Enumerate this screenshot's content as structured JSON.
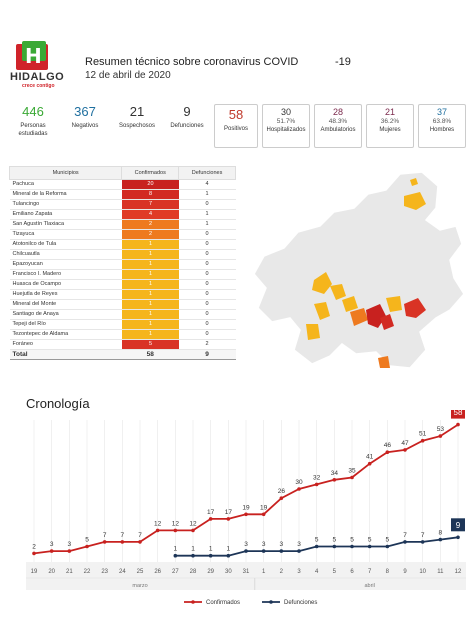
{
  "header": {
    "logo_text": "HIDALGO",
    "logo_sub": "crece contigo",
    "title": "Resumen técnico sobre coronavirus COVID",
    "title_suffix": "-19",
    "date": "12 de abril de 2020"
  },
  "stats": [
    {
      "value": "446",
      "label": "Personas estudiadas",
      "color": "#3aa935"
    },
    {
      "value": "367",
      "label": "Negativos",
      "color": "#1f6f9f"
    },
    {
      "value": "21",
      "label": "Sospechosos",
      "color": "#333333"
    },
    {
      "value": "9",
      "label": "Defunciones",
      "color": "#333333"
    },
    {
      "value": "58",
      "label": "Positivos",
      "color": "#c0392b"
    }
  ],
  "boxed_stats": [
    {
      "value": "30",
      "pct": "51.7%",
      "label": "Hospitalizados",
      "color": "#333333"
    },
    {
      "value": "28",
      "pct": "48.3%",
      "label": "Ambulatorios",
      "color": "#7b2a4d"
    },
    {
      "value": "21",
      "pct": "36.2%",
      "label": "Mujeres",
      "color": "#7b2a4d"
    },
    {
      "value": "37",
      "pct": "63.8%",
      "label": "Hombres",
      "color": "#1f6f9f"
    }
  ],
  "table": {
    "headers": [
      "Municipios",
      "Confirmados",
      "Defunciones"
    ],
    "rows": [
      {
        "name": "Pachuca",
        "confirmed": "20",
        "deaths": "4",
        "color": "#c8211f"
      },
      {
        "name": "Mineral de la Reforma",
        "confirmed": "8",
        "deaths": "1",
        "color": "#d22a22"
      },
      {
        "name": "Tulancingo",
        "confirmed": "7",
        "deaths": "0",
        "color": "#d93325"
      },
      {
        "name": "Emiliano Zapata",
        "confirmed": "4",
        "deaths": "1",
        "color": "#e03b26"
      },
      {
        "name": "San Agustín Tlaxiaca",
        "confirmed": "2",
        "deaths": "1",
        "color": "#ee7a1f"
      },
      {
        "name": "Tizayuca",
        "confirmed": "2",
        "deaths": "0",
        "color": "#ee7a1f"
      },
      {
        "name": "Atotonilco de Tula",
        "confirmed": "1",
        "deaths": "0",
        "color": "#f5b51c"
      },
      {
        "name": "Chilcuautla",
        "confirmed": "1",
        "deaths": "0",
        "color": "#f5b51c"
      },
      {
        "name": "Epazoyucan",
        "confirmed": "1",
        "deaths": "0",
        "color": "#f5b51c"
      },
      {
        "name": "Francisco I. Madero",
        "confirmed": "1",
        "deaths": "0",
        "color": "#f5b51c"
      },
      {
        "name": "Huasca de Ocampo",
        "confirmed": "1",
        "deaths": "0",
        "color": "#f5b51c"
      },
      {
        "name": "Huejutla de Reyes",
        "confirmed": "1",
        "deaths": "0",
        "color": "#f5b51c"
      },
      {
        "name": "Mineral del Monte",
        "confirmed": "1",
        "deaths": "0",
        "color": "#f5b51c"
      },
      {
        "name": "Santiago de Anaya",
        "confirmed": "1",
        "deaths": "0",
        "color": "#f5b51c"
      },
      {
        "name": "Tepeji del Río",
        "confirmed": "1",
        "deaths": "0",
        "color": "#f5b51c"
      },
      {
        "name": "Tezontepec de Aldama",
        "confirmed": "1",
        "deaths": "0",
        "color": "#f5b51c"
      },
      {
        "name": "Foráneo",
        "confirmed": "5",
        "deaths": "2",
        "color": "#d93325"
      }
    ],
    "total": {
      "name": "Total",
      "confirmed": "58",
      "deaths": "9"
    }
  },
  "cronologia_title": "Cronología",
  "chart_data": {
    "type": "line",
    "categories": [
      "19",
      "20",
      "21",
      "22",
      "23",
      "24",
      "25",
      "26",
      "27",
      "28",
      "29",
      "30",
      "31",
      "1",
      "2",
      "3",
      "4",
      "5",
      "6",
      "7",
      "8",
      "9",
      "10",
      "11",
      "12"
    ],
    "month_labels": [
      {
        "label": "marzo",
        "at": 6
      },
      {
        "label": "abril",
        "at": 19
      }
    ],
    "series": [
      {
        "name": "Confirmados",
        "color": "#c8211f",
        "values": [
          2,
          3,
          3,
          5,
          7,
          7,
          7,
          12,
          12,
          12,
          17,
          17,
          19,
          19,
          26,
          30,
          32,
          34,
          35,
          41,
          46,
          47,
          51,
          53,
          58
        ]
      },
      {
        "name": "Defunciones",
        "color": "#1d3557",
        "values": [
          null,
          null,
          null,
          null,
          null,
          null,
          null,
          null,
          1,
          1,
          1,
          1,
          3,
          3,
          3,
          3,
          5,
          5,
          5,
          5,
          5,
          7,
          7,
          8,
          9
        ]
      }
    ],
    "ylim": [
      0,
      60
    ],
    "legend_position": "bottom"
  }
}
